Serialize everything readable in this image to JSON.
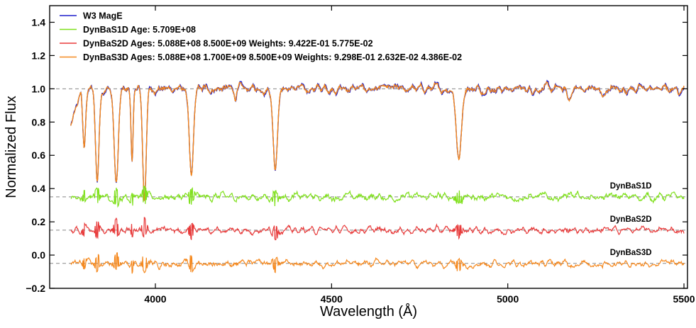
{
  "chart_data": {
    "type": "line",
    "title": "",
    "xlabel": "Wavelength (Å)",
    "ylabel": "Normalized Flux",
    "xlim": [
      3700,
      5510
    ],
    "ylim": [
      -0.2,
      1.5
    ],
    "xticks": [
      4000,
      4500,
      5000,
      5500
    ],
    "yticks": [
      -0.2,
      0.0,
      0.2,
      0.4,
      0.6,
      0.8,
      1.0,
      1.2,
      1.4
    ],
    "ytick_labels": [
      "−0.2",
      "0.0",
      "0.2",
      "0.4",
      "0.6",
      "0.8",
      "1.0",
      "1.2",
      "1.4"
    ],
    "grid": false,
    "legend_position": "top-left",
    "x_range": [
      3760,
      5500
    ],
    "absorption_lines": [
      {
        "center": 3798,
        "depth": 0.36,
        "width": 4
      },
      {
        "center": 3835,
        "depth": 0.55,
        "width": 5
      },
      {
        "center": 3889,
        "depth": 0.57,
        "width": 6
      },
      {
        "center": 3934,
        "depth": 0.45,
        "width": 3
      },
      {
        "center": 3969,
        "depth": 0.66,
        "width": 5
      },
      {
        "center": 4102,
        "depth": 0.54,
        "width": 6
      },
      {
        "center": 4227,
        "depth": 0.05,
        "width": 3
      },
      {
        "center": 4340,
        "depth": 0.47,
        "width": 6
      },
      {
        "center": 4861,
        "depth": 0.43,
        "width": 7
      },
      {
        "center": 5173,
        "depth": 0.07,
        "width": 5
      },
      {
        "center": 5270,
        "depth": 0.06,
        "width": 5
      }
    ],
    "series": [
      {
        "name": "W3 MagE",
        "color": "#1f1fcc",
        "kind": "spectrum",
        "offset": 0.0
      },
      {
        "name": "DynBaS1D Age: 5.709E+08",
        "color": "#7fe01b",
        "kind": "model",
        "offset": 0.0
      },
      {
        "name": "DynBaS2D Ages: 5.088E+08 8.500E+09 Weights: 9.422E-01 5.775E-02",
        "color": "#e83a3a",
        "kind": "model",
        "offset": 0.0
      },
      {
        "name": "DynBaS3D Ages: 5.088E+08 1.700E+09 8.500E+09 Weights: 9.298E-01 2.632E-02 4.386E-02",
        "color": "#f5891f",
        "kind": "model",
        "offset": 0.0
      }
    ],
    "residual_series": [
      {
        "name": "DynBaS1D",
        "color": "#7fe01b",
        "baseline": 0.35,
        "amplitude": 0.03
      },
      {
        "name": "DynBaS2D",
        "color": "#e83a3a",
        "baseline": 0.15,
        "amplitude": 0.025
      },
      {
        "name": "DynBaS3D",
        "color": "#f5891f",
        "baseline": -0.05,
        "amplitude": 0.025
      }
    ],
    "reference_lines": [
      1.0,
      0.35,
      0.15,
      -0.05
    ],
    "annotations": [
      {
        "text": "DynBaS1D",
        "x": 5290,
        "y": 0.4
      },
      {
        "text": "DynBaS2D",
        "x": 5290,
        "y": 0.2
      },
      {
        "text": "DynBaS3D",
        "x": 5290,
        "y": 0.0
      }
    ]
  }
}
